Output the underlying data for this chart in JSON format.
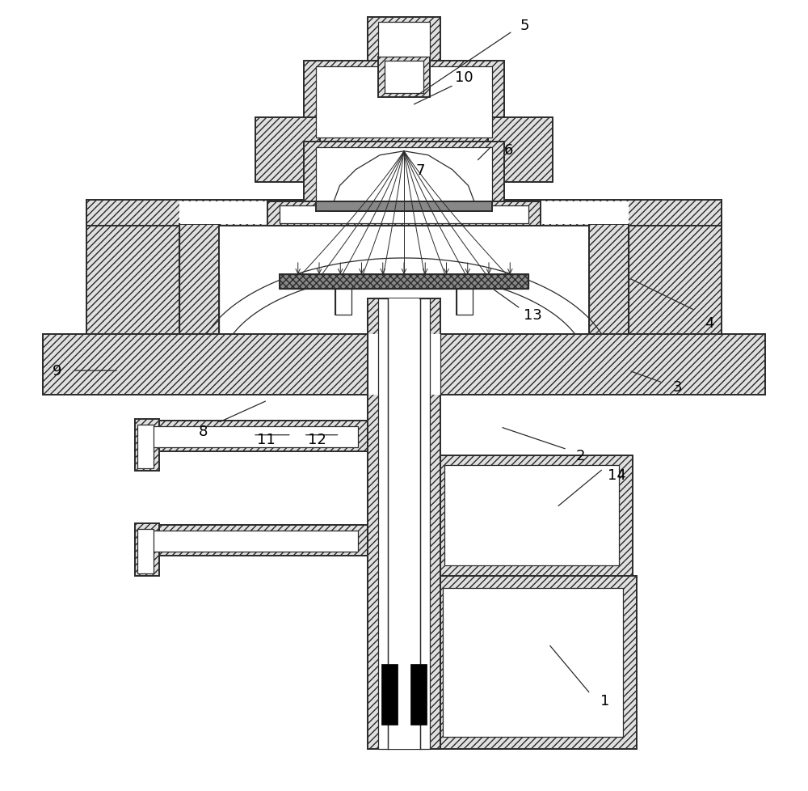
{
  "bg_color": "#ffffff",
  "ec": "#2a2a2a",
  "hc": "#e0e0e0",
  "lw_main": 1.4,
  "lw_thin": 0.9,
  "fig_width": 10.0,
  "fig_height": 9.79
}
